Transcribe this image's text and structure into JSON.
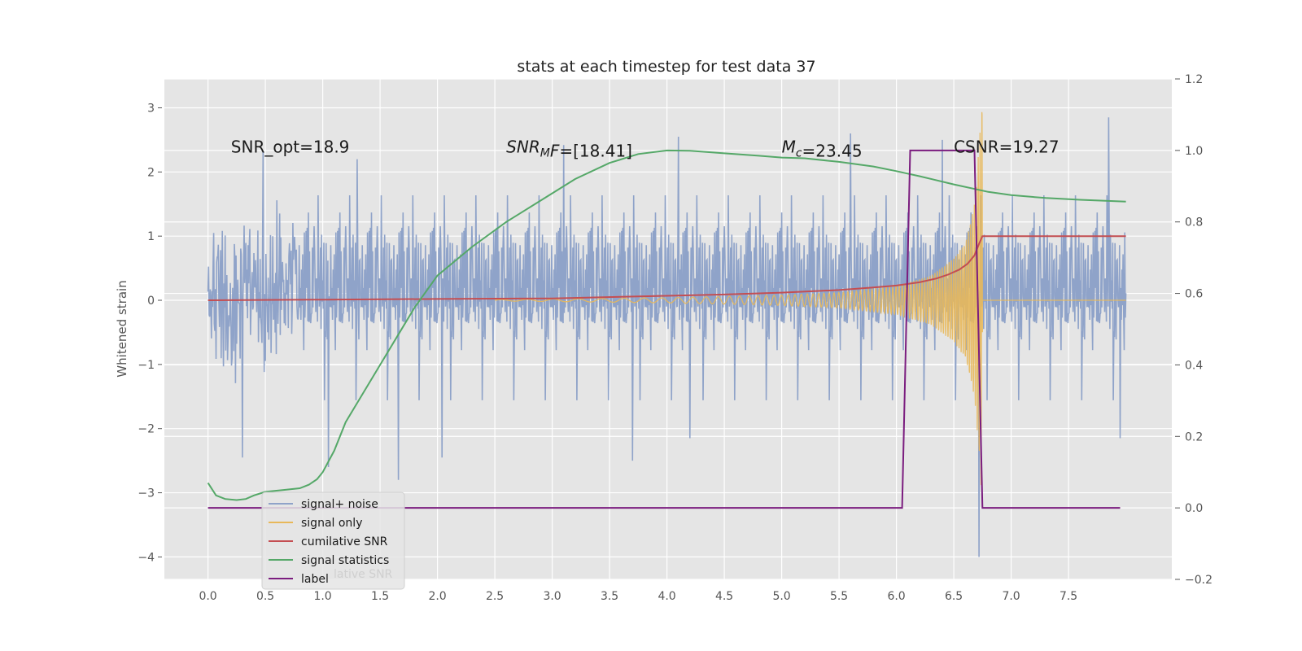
{
  "chart_data": {
    "type": "line",
    "title": "stats at each timestep for test data 37",
    "ylabel": "Whitened strain",
    "ylabel_right": "",
    "xlim": [
      -0.38,
      8.4
    ],
    "ylim": [
      -4.35,
      3.45
    ],
    "ylim_right": [
      -0.2,
      1.2
    ],
    "x_ticks": [
      0.0,
      0.5,
      1.0,
      1.5,
      2.0,
      2.5,
      3.0,
      3.5,
      4.0,
      4.5,
      5.0,
      5.5,
      6.0,
      6.5,
      7.0,
      7.5
    ],
    "x_tick_labels": [
      "0.0",
      "0.5",
      "1.0",
      "1.5",
      "2.0",
      "2.5",
      "3.0",
      "3.5",
      "4.0",
      "4.5",
      "5.0",
      "5.5",
      "6.0",
      "6.5",
      "7.0",
      "7.5"
    ],
    "y_ticks": [
      -4,
      -3,
      -2,
      -1,
      0,
      1,
      2,
      3
    ],
    "y_tick_labels": [
      "−4",
      "−3",
      "−2",
      "−1",
      "0",
      "1",
      "2",
      "3"
    ],
    "y_ticks_right": [
      -0.2,
      0.0,
      0.2,
      0.4,
      0.6,
      0.8,
      1.0,
      1.2
    ],
    "y_tick_labels_right": [
      "−0.2",
      "0.0",
      "0.2",
      "0.4",
      "0.6",
      "0.8",
      "1.0",
      "1.2"
    ],
    "grid": true,
    "legend_position": "lower-left",
    "annotations": [
      {
        "name": "snr-opt",
        "parts": [
          {
            "t": "SNR_opt=18.9"
          }
        ],
        "x": 0.2,
        "y": 2.3
      },
      {
        "name": "snr-mf",
        "parts": [
          {
            "t": "SNR",
            "i": true
          },
          {
            "t": "M",
            "i": true,
            "sub": true
          },
          {
            "t": "F",
            "i": true
          },
          {
            "t": "=[18.41]"
          }
        ],
        "x": 2.6,
        "y": 2.3
      },
      {
        "name": "mc",
        "parts": [
          {
            "t": "M",
            "i": true
          },
          {
            "t": "c",
            "i": true,
            "sub": true
          },
          {
            "t": "=23.45"
          }
        ],
        "x": 5.0,
        "y": 2.3
      },
      {
        "name": "csnr",
        "parts": [
          {
            "t": "CSNR=19.27"
          }
        ],
        "x": 6.5,
        "y": 2.3
      }
    ],
    "series": [
      {
        "name": "signal+ noise",
        "color": "#8fa3c9",
        "axis": "left",
        "kind": "noise",
        "x_range": [
          0.0,
          8.0
        ],
        "envelope": 1.25,
        "extremes": [
          {
            "x": 0.3,
            "y": -2.45
          },
          {
            "x": 0.48,
            "y": 2.32
          },
          {
            "x": 1.05,
            "y": -2.6
          },
          {
            "x": 1.3,
            "y": 2.2
          },
          {
            "x": 1.66,
            "y": -2.8
          },
          {
            "x": 2.04,
            "y": -2.45
          },
          {
            "x": 3.1,
            "y": 2.42
          },
          {
            "x": 3.7,
            "y": -2.5
          },
          {
            "x": 4.1,
            "y": 2.55
          },
          {
            "x": 4.2,
            "y": -2.15
          },
          {
            "x": 5.6,
            "y": 2.6
          },
          {
            "x": 6.4,
            "y": 2.5
          },
          {
            "x": 6.72,
            "y": -4.0
          },
          {
            "x": 7.85,
            "y": 2.85
          },
          {
            "x": 7.95,
            "y": -2.15
          }
        ]
      },
      {
        "name": "signal only",
        "color": "#e8b85a",
        "axis": "left",
        "kind": "chirp",
        "x_range": [
          2.5,
          6.75
        ],
        "amp_points": [
          [
            2.5,
            0.01
          ],
          [
            4.0,
            0.04
          ],
          [
            5.0,
            0.08
          ],
          [
            5.5,
            0.12
          ],
          [
            6.0,
            0.22
          ],
          [
            6.3,
            0.38
          ],
          [
            6.5,
            0.65
          ],
          [
            6.6,
            0.9
          ],
          [
            6.68,
            1.5
          ],
          [
            6.72,
            2.4
          ],
          [
            6.745,
            3.1
          ]
        ]
      },
      {
        "name": "cumilative SNR",
        "color": "#c44e52",
        "axis": "left",
        "x": [
          0.0,
          1.0,
          2.0,
          3.0,
          4.0,
          4.5,
          5.0,
          5.5,
          5.8,
          6.0,
          6.2,
          6.35,
          6.45,
          6.55,
          6.62,
          6.68,
          6.72,
          6.75,
          7.0,
          7.5,
          8.0
        ],
        "y": [
          0.0,
          0.01,
          0.02,
          0.03,
          0.07,
          0.09,
          0.12,
          0.16,
          0.2,
          0.23,
          0.28,
          0.34,
          0.4,
          0.48,
          0.57,
          0.7,
          0.88,
          1.0,
          1.0,
          1.0,
          1.0
        ]
      },
      {
        "name": "signal statistics",
        "color": "#55a868",
        "axis": "right",
        "x": [
          0.0,
          0.07,
          0.15,
          0.25,
          0.33,
          0.4,
          0.5,
          0.65,
          0.8,
          0.88,
          0.95,
          1.0,
          1.1,
          1.2,
          1.35,
          1.5,
          1.65,
          1.8,
          2.0,
          2.3,
          2.6,
          2.9,
          3.2,
          3.5,
          3.75,
          4.0,
          4.2,
          4.5,
          4.8,
          5.0,
          5.2,
          5.5,
          5.8,
          6.0,
          6.2,
          6.5,
          6.8,
          7.0,
          7.3,
          7.6,
          8.0
        ],
        "y": [
          0.07,
          0.035,
          0.025,
          0.022,
          0.025,
          0.035,
          0.045,
          0.05,
          0.055,
          0.065,
          0.08,
          0.1,
          0.16,
          0.24,
          0.32,
          0.4,
          0.48,
          0.56,
          0.65,
          0.73,
          0.8,
          0.86,
          0.92,
          0.965,
          0.99,
          1.0,
          0.999,
          0.992,
          0.985,
          0.98,
          0.978,
          0.968,
          0.955,
          0.942,
          0.928,
          0.905,
          0.884,
          0.875,
          0.867,
          0.862,
          0.857
        ]
      },
      {
        "name": "label",
        "color": "#7b1d7f",
        "axis": "right",
        "x": [
          0.0,
          6.05,
          6.12,
          6.68,
          6.75,
          7.95
        ],
        "y": [
          0.0,
          0.0,
          1.0,
          1.0,
          0.0,
          0.0
        ]
      }
    ],
    "legend_overlap_text": "lative SNR"
  }
}
